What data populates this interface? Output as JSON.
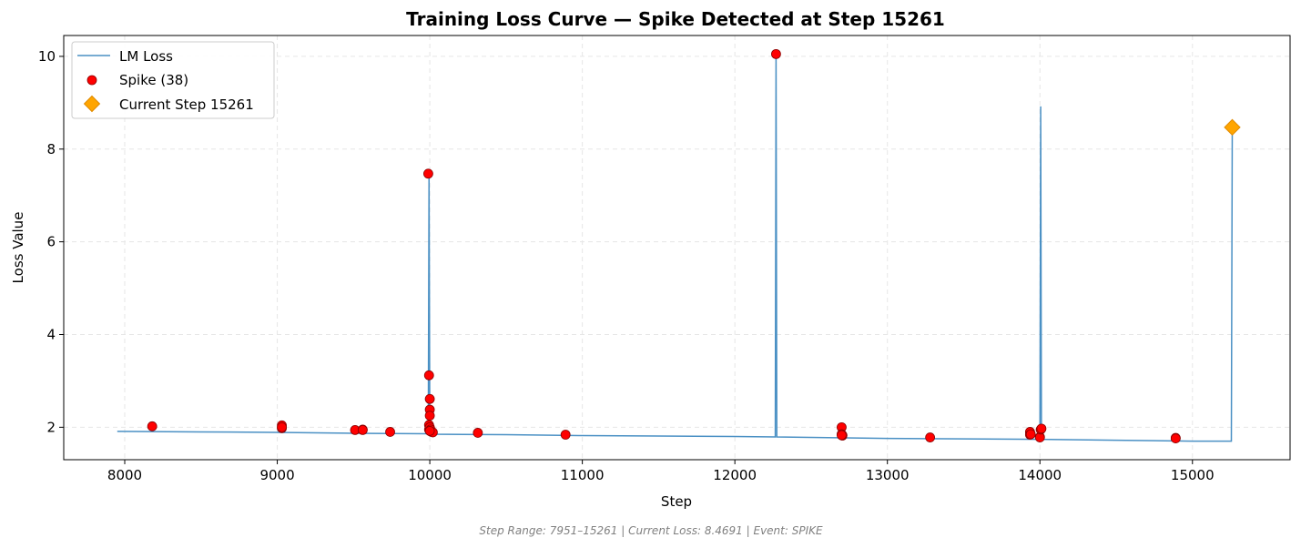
{
  "chart_data": {
    "type": "line",
    "title": "Training Loss Curve — Spike Detected at Step 15261",
    "xlabel": "Step",
    "ylabel": "Loss Value",
    "xlim": [
      7600,
      15640
    ],
    "ylim": [
      1.3,
      10.45
    ],
    "xticks": [
      8000,
      9000,
      10000,
      11000,
      12000,
      13000,
      14000,
      15000
    ],
    "yticks": [
      2,
      4,
      6,
      8,
      10
    ],
    "grid": true,
    "legend_position": "upper-left",
    "colors": {
      "loss_line": "#4a90c4",
      "spike_fill": "#ff0000",
      "spike_edge": "#8b0000",
      "current_fill": "#ffa500",
      "current_edge": "#e08a00"
    },
    "loss_series": {
      "name": "LM Loss",
      "x": [
        7951,
        8500,
        9000,
        9500,
        9990,
        9995,
        10000,
        10005,
        10500,
        11000,
        11500,
        12000,
        12265,
        12270,
        12275,
        12500,
        13000,
        13500,
        14000,
        14005,
        14010,
        14500,
        15000,
        15255,
        15261
      ],
      "y": [
        1.91,
        1.9,
        1.89,
        1.87,
        1.86,
        7.47,
        1.86,
        1.85,
        1.84,
        1.82,
        1.81,
        1.8,
        1.79,
        10.05,
        1.79,
        1.78,
        1.76,
        1.75,
        1.74,
        8.92,
        1.74,
        1.72,
        1.7,
        1.7,
        8.47
      ]
    },
    "spikes": {
      "name": "Spike (38)",
      "x": [
        8180,
        9030,
        9030,
        9510,
        9560,
        9560,
        9740,
        9990,
        9995,
        10000,
        10000,
        10000,
        9995,
        9995,
        10000,
        10005,
        10010,
        10020,
        10315,
        10890,
        12270,
        12700,
        12700,
        12705,
        12705,
        13280,
        13935,
        13935,
        13940,
        14000,
        14000,
        14005,
        14010,
        14890,
        14890,
        10000,
        12700,
        9030
      ],
      "y": [
        2.02,
        2.04,
        1.98,
        1.94,
        1.95,
        1.94,
        1.9,
        7.47,
        3.12,
        2.61,
        2.38,
        2.25,
        2.05,
        1.95,
        2.0,
        1.95,
        1.9,
        1.89,
        1.88,
        1.84,
        10.05,
        2.0,
        1.85,
        1.82,
        1.83,
        1.78,
        1.9,
        1.84,
        1.85,
        1.79,
        1.78,
        1.95,
        1.97,
        1.77,
        1.76,
        1.92,
        1.83,
        2.0
      ]
    },
    "current": {
      "name": "Current Step 15261",
      "x": 15261,
      "y": 8.47
    }
  },
  "footer_text": "Step Range: 7951–15261 | Current Loss: 8.4691 | Event: SPIKE"
}
